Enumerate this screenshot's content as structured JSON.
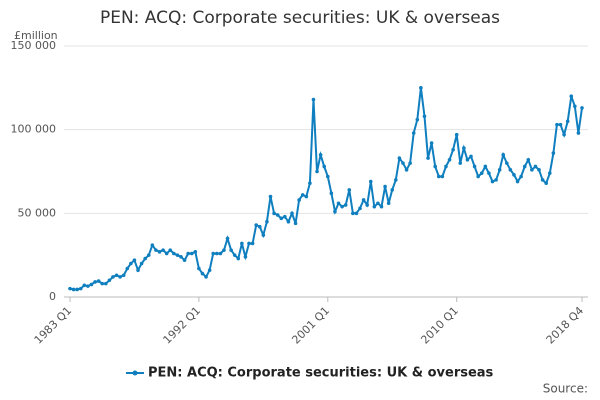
{
  "chart_data": {
    "type": "line",
    "title": "PEN: ACQ: Corporate securities: UK & overseas",
    "y_label": "£million",
    "source": "Source:",
    "categories": [
      "1983 Q1",
      null,
      null,
      null,
      null,
      null,
      null,
      null,
      null,
      null,
      null,
      null,
      null,
      null,
      null,
      null,
      null,
      null,
      null,
      null,
      null,
      null,
      null,
      null,
      null,
      null,
      null,
      null,
      null,
      null,
      null,
      null,
      null,
      null,
      null,
      null,
      "1992 Q1",
      null,
      null,
      null,
      null,
      null,
      null,
      null,
      null,
      null,
      null,
      null,
      null,
      null,
      null,
      null,
      null,
      null,
      null,
      null,
      null,
      null,
      null,
      null,
      null,
      null,
      null,
      null,
      null,
      null,
      null,
      null,
      null,
      null,
      null,
      null,
      "2001 Q1",
      null,
      null,
      null,
      null,
      null,
      null,
      null,
      null,
      null,
      null,
      null,
      null,
      null,
      null,
      null,
      null,
      null,
      null,
      null,
      null,
      null,
      null,
      null,
      null,
      null,
      null,
      null,
      null,
      null,
      null,
      null,
      null,
      null,
      null,
      null,
      "2010 Q1",
      null,
      null,
      null,
      null,
      null,
      null,
      null,
      null,
      null,
      null,
      null,
      null,
      null,
      null,
      null,
      null,
      null,
      null,
      null,
      null,
      null,
      null,
      null,
      null,
      null,
      null,
      null,
      null,
      null,
      null,
      null,
      null,
      null,
      null,
      "2018 Q4"
    ],
    "series": [
      {
        "name": "PEN: ACQ: Corporate securities: UK & overseas",
        "color": "#0f7fbf",
        "values": [
          5000,
          4500,
          4500,
          5000,
          7000,
          6500,
          7500,
          9000,
          9500,
          8000,
          8000,
          10000,
          12000,
          13000,
          12000,
          13000,
          17000,
          20000,
          22000,
          16000,
          20000,
          23000,
          25000,
          31000,
          28000,
          27000,
          28000,
          26000,
          28000,
          26000,
          25000,
          24000,
          22000,
          26000,
          26000,
          27000,
          17000,
          14000,
          12000,
          16000,
          26000,
          26000,
          26000,
          28000,
          35000,
          28000,
          25000,
          23000,
          32000,
          24000,
          32000,
          32000,
          43000,
          42000,
          37000,
          45000,
          60000,
          50000,
          49000,
          47000,
          48000,
          45000,
          50000,
          44000,
          58000,
          61000,
          60000,
          68000,
          118000,
          75000,
          85000,
          78000,
          72000,
          62000,
          51000,
          56000,
          54000,
          55000,
          64000,
          50000,
          50000,
          53000,
          58000,
          55000,
          69000,
          54000,
          56000,
          54000,
          66000,
          56000,
          64000,
          70000,
          83000,
          80000,
          76000,
          80000,
          98000,
          106000,
          125000,
          108000,
          83000,
          92000,
          78000,
          72000,
          72000,
          78000,
          82000,
          88000,
          97000,
          80000,
          89000,
          82000,
          84000,
          78000,
          72000,
          74000,
          78000,
          74000,
          69000,
          70000,
          76000,
          85000,
          80000,
          76000,
          73000,
          69000,
          72000,
          78000,
          82000,
          76000,
          78000,
          76000,
          70000,
          68000,
          74000,
          86000,
          103000,
          103000,
          97000,
          105000,
          120000,
          114000,
          98000,
          113000
        ]
      }
    ],
    "ylim": [
      0,
      150000
    ],
    "yticks": [
      0,
      {
        "value": 50000,
        "label": "50 000"
      },
      {
        "value": 100000,
        "label": "100 000"
      },
      {
        "value": 150000,
        "label": "150 000"
      }
    ],
    "grid": true,
    "legend": "bottom"
  }
}
